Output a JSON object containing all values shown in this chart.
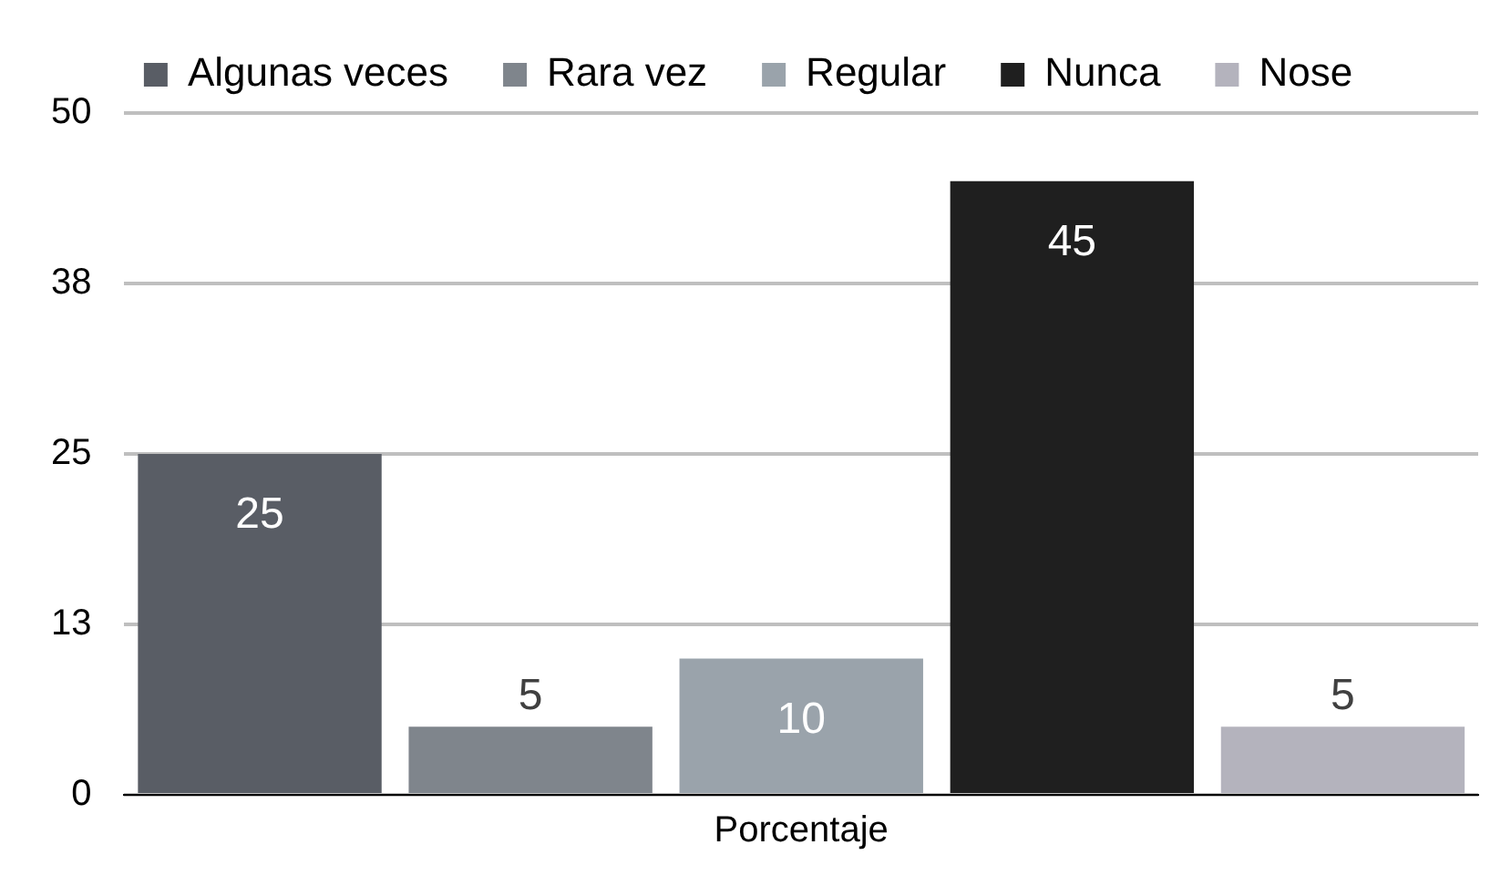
{
  "chart_data": {
    "type": "bar",
    "categories": [
      "Porcentaje"
    ],
    "series": [
      {
        "name": "Algunas veces",
        "color": "#595d65",
        "values": [
          25
        ]
      },
      {
        "name": "Rara vez",
        "color": "#7f858c",
        "values": [
          5
        ]
      },
      {
        "name": "Regular",
        "color": "#9aa3ab",
        "values": [
          10
        ]
      },
      {
        "name": "Nunca",
        "color": "#1f1f1f",
        "values": [
          45
        ]
      },
      {
        "name": "Nose",
        "color": "#b4b3bd",
        "values": [
          5
        ]
      }
    ],
    "ylim": [
      0,
      50
    ],
    "yticks": [
      0,
      {
        "value": 12.5,
        "label": "13"
      },
      25,
      {
        "value": 37.5,
        "label": "38"
      },
      50
    ],
    "grid": "y",
    "legend": "top",
    "data_labels": true
  }
}
